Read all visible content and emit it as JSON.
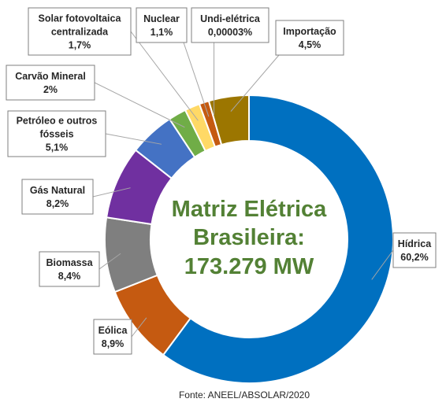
{
  "chart_data": {
    "type": "pie",
    "donut": true,
    "center_title": [
      "Matriz Elétrica",
      "Brasileira:",
      "173.279 MW"
    ],
    "source": "Fonte: ANEEL/ABSOLAR/2020",
    "slices": [
      {
        "key": "hidrica",
        "label": "Hídrica",
        "value_text": "60,2%",
        "value": 60.2,
        "color": "#0070c0"
      },
      {
        "key": "eolica",
        "label": "Eólica",
        "value_text": "8,9%",
        "value": 8.9,
        "color": "#c55a11"
      },
      {
        "key": "biomassa",
        "label": "Biomassa",
        "value_text": "8,4%",
        "value": 8.4,
        "color": "#7f7f7f"
      },
      {
        "key": "gas-natural",
        "label": "Gás Natural",
        "value_text": "8,2%",
        "value": 8.2,
        "color": "#7030a0"
      },
      {
        "key": "petroleo",
        "label": "Petróleo e outros\nfósseis",
        "value_text": "5,1%",
        "value": 5.1,
        "color": "#4472c4"
      },
      {
        "key": "carvao",
        "label": "Carvão Mineral",
        "value_text": "2%",
        "value": 2.0,
        "color": "#70ad47"
      },
      {
        "key": "solar",
        "label": "Solar fotovoltaica\ncentralizada",
        "value_text": "1,7%",
        "value": 1.7,
        "color": "#ffd966"
      },
      {
        "key": "nuclear",
        "label": "Nuclear",
        "value_text": "1,1%",
        "value": 1.1,
        "color": "#c55a11"
      },
      {
        "key": "undi-eletrica",
        "label": "Undi-elétrica",
        "value_text": "0,00003%",
        "value": 3e-05,
        "color": "#1f3864"
      },
      {
        "key": "importacao",
        "label": "Importação",
        "value_text": "4,5%",
        "value": 4.5,
        "color": "#9c7600"
      }
    ]
  }
}
